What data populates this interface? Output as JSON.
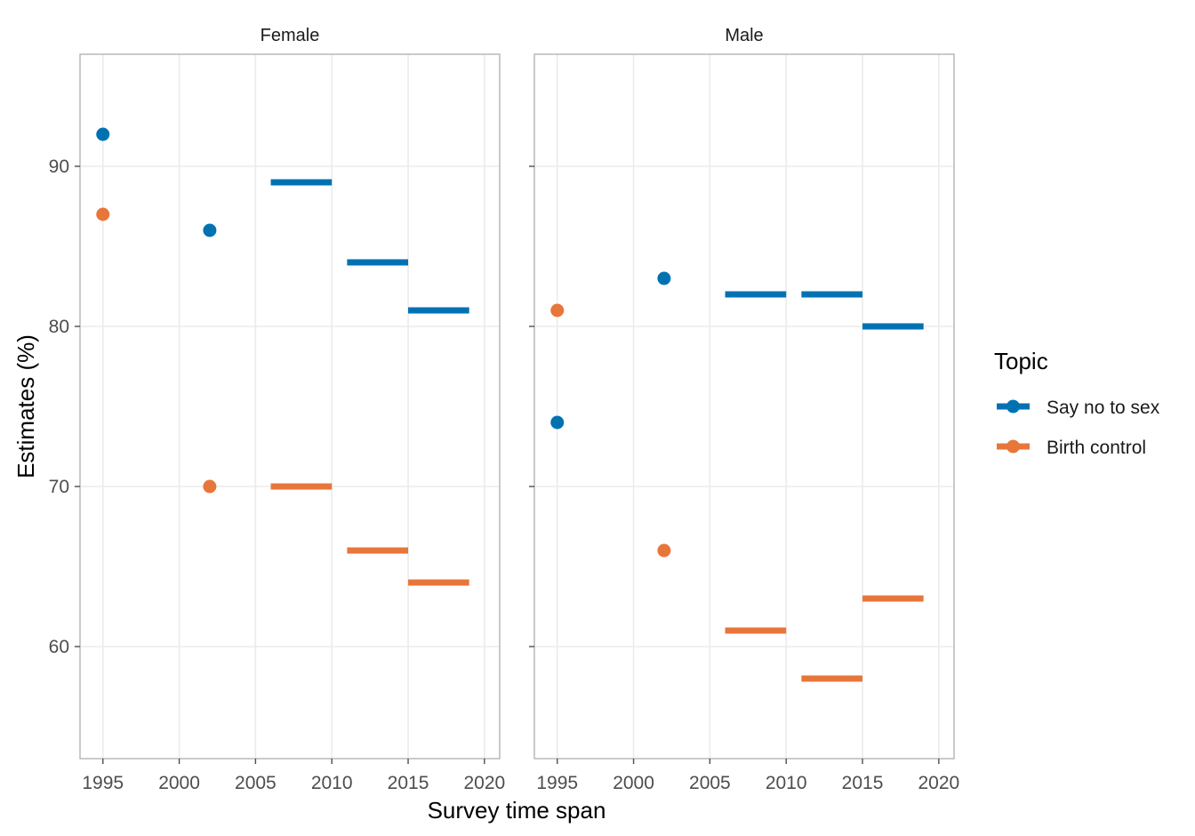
{
  "chart_data": {
    "type": "scatter",
    "xlabel": "Survey time span",
    "ylabel": "Estimates (%)",
    "xlim": [
      1993.5,
      2021
    ],
    "ylim": [
      53,
      97
    ],
    "x_ticks": [
      1995,
      2000,
      2005,
      2010,
      2015,
      2020
    ],
    "y_ticks": [
      60,
      70,
      80,
      90
    ],
    "grid": true,
    "legend": {
      "title": "Topic",
      "placement": "right",
      "entries": [
        {
          "label": "Say no to sex",
          "color": "#0072B2"
        },
        {
          "label": "Birth control",
          "color": "#E8763A"
        }
      ]
    },
    "facets": [
      {
        "label": "Female",
        "series": [
          {
            "topic": "Say no to sex",
            "points": [
              {
                "x": 1995,
                "y": 92
              },
              {
                "x": 2002,
                "y": 86
              }
            ],
            "spans": [
              {
                "x_start": 2006,
                "x_end": 2010,
                "y": 89
              },
              {
                "x_start": 2011,
                "x_end": 2015,
                "y": 84
              },
              {
                "x_start": 2015,
                "x_end": 2019,
                "y": 81
              }
            ]
          },
          {
            "topic": "Birth control",
            "points": [
              {
                "x": 1995,
                "y": 87
              },
              {
                "x": 2002,
                "y": 70
              }
            ],
            "spans": [
              {
                "x_start": 2006,
                "x_end": 2010,
                "y": 70
              },
              {
                "x_start": 2011,
                "x_end": 2015,
                "y": 66
              },
              {
                "x_start": 2015,
                "x_end": 2019,
                "y": 64
              }
            ]
          }
        ]
      },
      {
        "label": "Male",
        "series": [
          {
            "topic": "Say no to sex",
            "points": [
              {
                "x": 1995,
                "y": 74
              },
              {
                "x": 2002,
                "y": 83
              }
            ],
            "spans": [
              {
                "x_start": 2006,
                "x_end": 2010,
                "y": 82
              },
              {
                "x_start": 2011,
                "x_end": 2015,
                "y": 82
              },
              {
                "x_start": 2015,
                "x_end": 2019,
                "y": 80
              }
            ]
          },
          {
            "topic": "Birth control",
            "points": [
              {
                "x": 1995,
                "y": 81
              },
              {
                "x": 2002,
                "y": 66
              }
            ],
            "spans": [
              {
                "x_start": 2006,
                "x_end": 2010,
                "y": 61
              },
              {
                "x_start": 2011,
                "x_end": 2015,
                "y": 58
              },
              {
                "x_start": 2015,
                "x_end": 2019,
                "y": 63
              }
            ]
          }
        ]
      }
    ]
  }
}
